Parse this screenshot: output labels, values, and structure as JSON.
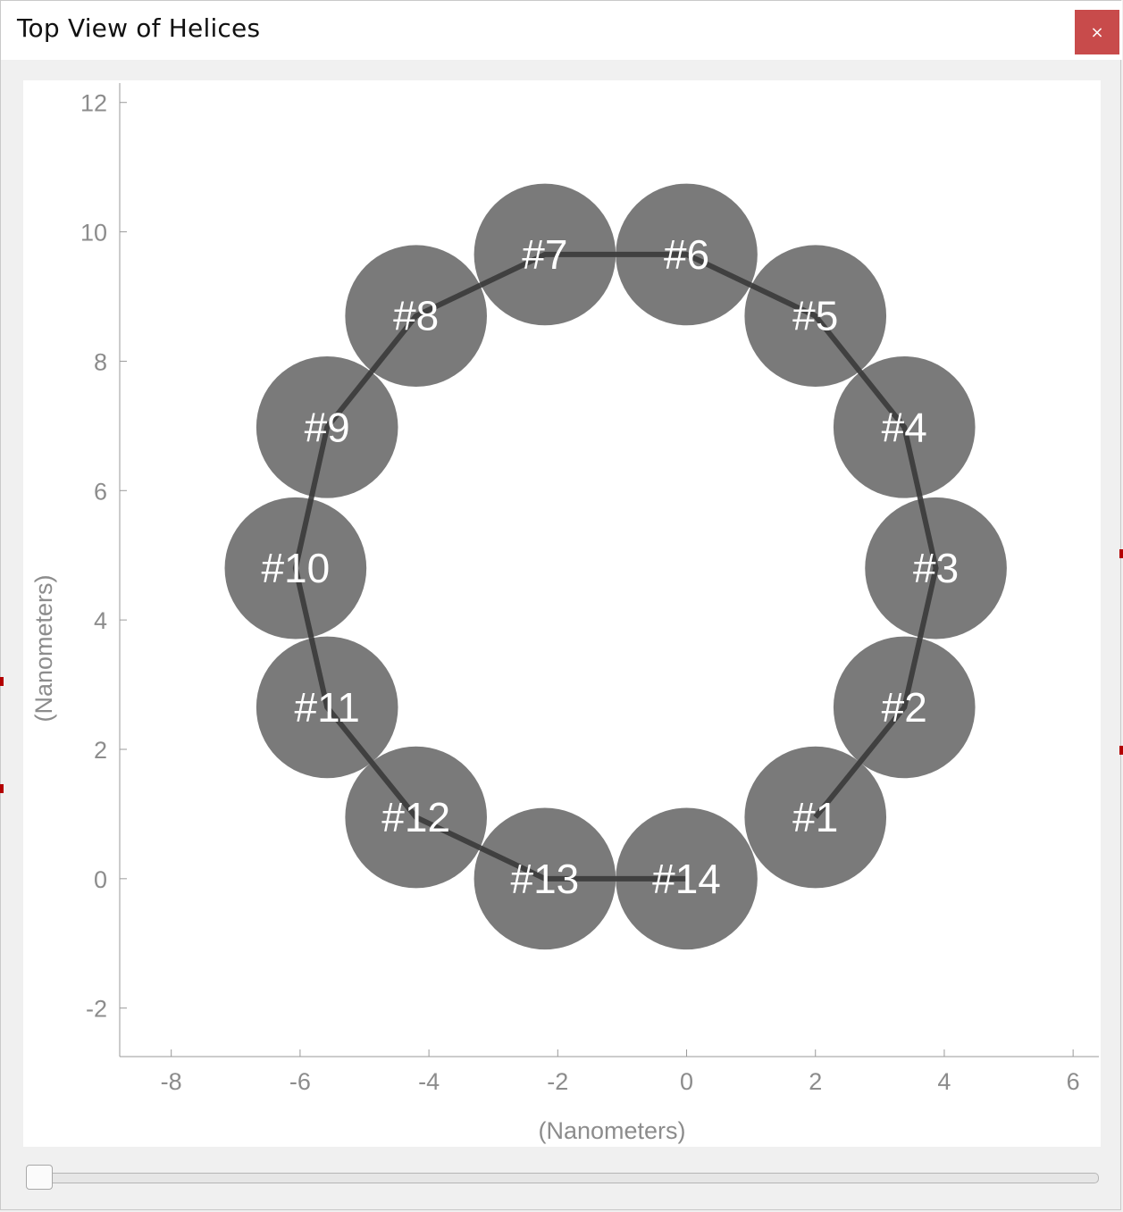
{
  "window": {
    "title": "Top View of Helices",
    "close_icon": "close-icon",
    "close_glyph": "×"
  },
  "slider": {
    "value": 0
  },
  "colors": {
    "helix_fill": "#7a7a7a",
    "connector": "#3a3a3a",
    "label_text": "#ffffff",
    "axis_text": "#8c8c8c",
    "close_bg": "#c84b4b"
  },
  "chart_data": {
    "type": "scatter",
    "title": "",
    "xlabel": "(Nanometers)",
    "ylabel": "(Nanometers)",
    "xlim": [
      -8.8,
      6.4
    ],
    "ylim": [
      -2.75,
      12.3
    ],
    "xticks": [
      -8,
      -6,
      -4,
      -2,
      0,
      2,
      4,
      6
    ],
    "yticks": [
      -2,
      0,
      2,
      4,
      6,
      8,
      10,
      12
    ],
    "grid": false,
    "helix_radius": 1.1,
    "points": [
      {
        "label": "#1",
        "x": 2.0,
        "y": 0.95
      },
      {
        "label": "#2",
        "x": 3.38,
        "y": 2.65
      },
      {
        "label": "#3",
        "x": 3.87,
        "y": 4.8
      },
      {
        "label": "#4",
        "x": 3.38,
        "y": 6.98
      },
      {
        "label": "#5",
        "x": 2.0,
        "y": 8.7
      },
      {
        "label": "#6",
        "x": 0.0,
        "y": 9.65
      },
      {
        "label": "#7",
        "x": -2.2,
        "y": 9.65
      },
      {
        "label": "#8",
        "x": -4.2,
        "y": 8.7
      },
      {
        "label": "#9",
        "x": -5.58,
        "y": 6.98
      },
      {
        "label": "#10",
        "x": -6.07,
        "y": 4.8
      },
      {
        "label": "#11",
        "x": -5.58,
        "y": 2.65
      },
      {
        "label": "#12",
        "x": -4.2,
        "y": 0.95
      },
      {
        "label": "#13",
        "x": -2.2,
        "y": 0.0
      },
      {
        "label": "#14",
        "x": 0.0,
        "y": 0.0
      }
    ]
  }
}
